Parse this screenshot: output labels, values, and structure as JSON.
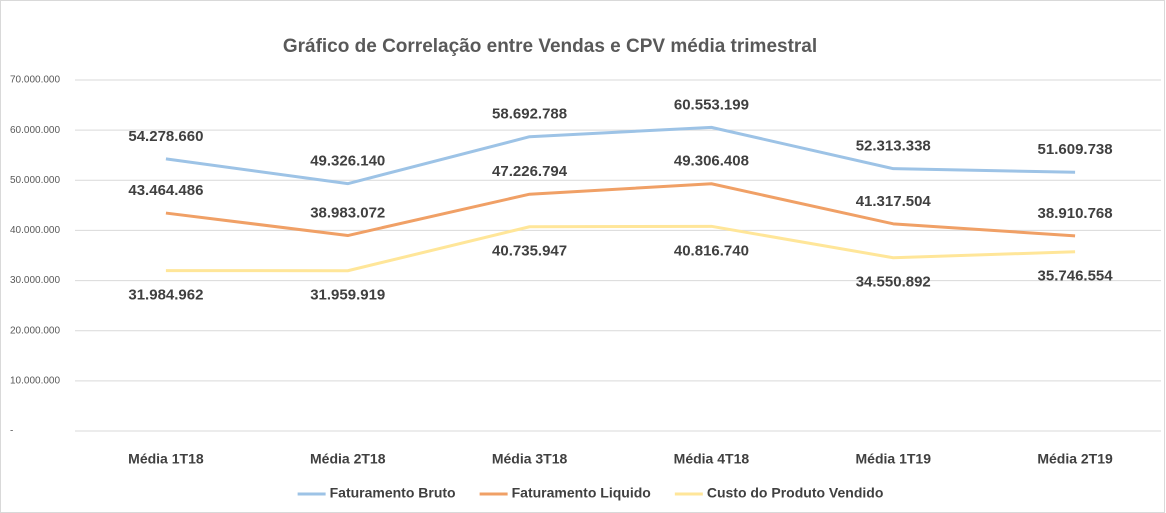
{
  "chart_data": {
    "type": "line",
    "title": "Gráfico de Correlação entre Vendas e CPV média trimestral",
    "categories": [
      "Média 1T18",
      "Média 2T18",
      "Média 3T18",
      "Média 4T18",
      "Média 1T19",
      "Média 2T19"
    ],
    "series": [
      {
        "name": "Faturamento Bruto",
        "color": "#9dc3e6",
        "values": [
          54278660,
          49326140,
          58692788,
          60553199,
          52313338,
          51609738
        ],
        "value_labels": [
          "54.278.660",
          "49.326.140",
          "58.692.788",
          "60.553.199",
          "52.313.338",
          "51.609.738"
        ]
      },
      {
        "name": "Faturamento Liquido",
        "color": "#f0a066",
        "values": [
          43464486,
          38983072,
          47226794,
          49306408,
          41317504,
          38910768
        ],
        "value_labels": [
          "43.464.486",
          "38.983.072",
          "47.226.794",
          "49.306.408",
          "41.317.504",
          "38.910.768"
        ]
      },
      {
        "name": "Custo do Produto Vendido",
        "color": "#ffe699",
        "values": [
          31984962,
          31959919,
          40735947,
          40816740,
          34550892,
          35746554
        ],
        "value_labels": [
          "31.984.962",
          "31.959.919",
          "40.735.947",
          "40.816.740",
          "34.550.892",
          "35.746.554"
        ]
      }
    ],
    "ylim": [
      0,
      70000000
    ],
    "yticks": [
      {
        "value": 0,
        "label": "-"
      },
      {
        "value": 10000000,
        "label": "10.000.000"
      },
      {
        "value": 20000000,
        "label": "20.000.000"
      },
      {
        "value": 30000000,
        "label": "30.000.000"
      },
      {
        "value": 40000000,
        "label": "40.000.000"
      },
      {
        "value": 50000000,
        "label": "50.000.000"
      },
      {
        "value": 60000000,
        "label": "60.000.000"
      },
      {
        "value": 70000000,
        "label": "70.000.000"
      }
    ],
    "grid": true,
    "legend": "bottom"
  }
}
